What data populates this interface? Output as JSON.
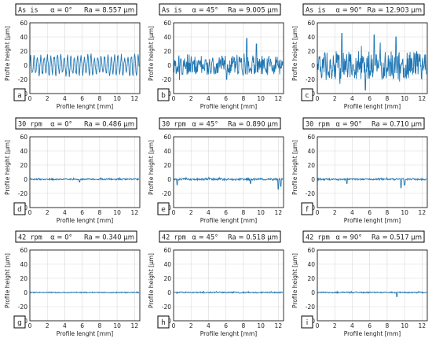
{
  "figure": {
    "series_color": "#1f77b4",
    "axis_color": "#000000",
    "grid_color": "#d9d9d9"
  },
  "chart_data": [
    {
      "type": "line",
      "panel_label": "a",
      "header": {
        "condition": "As is",
        "angle": "α = 0°",
        "ra": "Ra = 8.557 μm"
      },
      "xlabel": "Profile lenght [mm]",
      "ylabel": "Profile height [μm]",
      "xlim": [
        0,
        12.6
      ],
      "ylim": [
        -40,
        60
      ],
      "xticks": [
        0,
        2,
        4,
        6,
        8,
        10,
        12
      ],
      "yticks": [
        -40,
        -20,
        0,
        20,
        40,
        60
      ],
      "grid": true,
      "series": [
        {
          "amplitude": 15,
          "peak": 22,
          "spikes": [],
          "description": "periodic oscillation around 0"
        }
      ]
    },
    {
      "type": "line",
      "panel_label": "b",
      "header": {
        "condition": "As is",
        "angle": "α = 45°",
        "ra": "Ra = 9.005 μm"
      },
      "xlabel": "Profile lenght [mm]",
      "ylabel": "Profile height [μm]",
      "xlim": [
        0,
        12.6
      ],
      "ylim": [
        -40,
        60
      ],
      "xticks": [
        0,
        2,
        4,
        6,
        8,
        10,
        12
      ],
      "yticks": [
        -40,
        -20,
        0,
        20,
        40,
        60
      ],
      "grid": true,
      "series": [
        {
          "amplitude": 14,
          "peak": 38,
          "spikes": [
            [
              8.4,
              38
            ],
            [
              9.5,
              30
            ],
            [
              6.1,
              -20
            ]
          ],
          "description": "irregular profile around 0"
        }
      ]
    },
    {
      "type": "line",
      "panel_label": "c",
      "header": {
        "condition": "As is",
        "angle": "α = 90°",
        "ra": "Ra = 12.903 μm"
      },
      "xlabel": "Profile lenght [mm]",
      "ylabel": "Profile height [μm]",
      "xlim": [
        0,
        12.6
      ],
      "ylim": [
        -40,
        60
      ],
      "xticks": [
        0,
        2,
        4,
        6,
        8,
        10,
        12
      ],
      "yticks": [
        -40,
        -20,
        0,
        20,
        40,
        60
      ],
      "grid": true,
      "series": [
        {
          "amplitude": 20,
          "peak": 45,
          "spikes": [
            [
              2.8,
              45
            ],
            [
              6.5,
              43
            ],
            [
              9.0,
              40
            ],
            [
              5.5,
              -35
            ]
          ],
          "description": "high-amplitude irregular profile"
        }
      ]
    },
    {
      "type": "line",
      "panel_label": "d",
      "header": {
        "condition": "30 rpm",
        "angle": "α = 0°",
        "ra": "Ra = 0.486 μm"
      },
      "xlabel": "Profile lenght [mm]",
      "ylabel": "Profile height [μm]",
      "xlim": [
        0,
        12.6
      ],
      "ylim": [
        -40,
        60
      ],
      "xticks": [
        0,
        2,
        4,
        6,
        8,
        10,
        12
      ],
      "yticks": [
        -40,
        -20,
        0,
        20,
        40,
        60
      ],
      "grid": true,
      "series": [
        {
          "amplitude": 1.0,
          "peak": 2,
          "spikes": [
            [
              5.7,
              -4
            ]
          ],
          "description": "nearly flat at 0"
        }
      ]
    },
    {
      "type": "line",
      "panel_label": "e",
      "header": {
        "condition": "30 rpm",
        "angle": "α = 45°",
        "ra": "Ra = 0.890 μm"
      },
      "xlabel": "Profile lenght [mm]",
      "ylabel": "Profile height [μm]",
      "xlim": [
        0,
        12.6
      ],
      "ylim": [
        -40,
        60
      ],
      "xticks": [
        0,
        2,
        4,
        6,
        8,
        10,
        12
      ],
      "yticks": [
        -40,
        -20,
        0,
        20,
        40,
        60
      ],
      "grid": true,
      "series": [
        {
          "amplitude": 1.5,
          "peak": 3,
          "spikes": [
            [
              0.4,
              -8
            ],
            [
              8.8,
              -6
            ],
            [
              12.0,
              -14
            ],
            [
              12.3,
              -10
            ]
          ],
          "description": "nearly flat with small dips"
        }
      ]
    },
    {
      "type": "line",
      "panel_label": "f",
      "header": {
        "condition": "30 rpm",
        "angle": "α = 90°",
        "ra": "Ra = 0.710 μm"
      },
      "xlabel": "Profile lenght [mm]",
      "ylabel": "Profile height [μm]",
      "xlim": [
        0,
        12.6
      ],
      "ylim": [
        -40,
        60
      ],
      "xticks": [
        0,
        2,
        4,
        6,
        8,
        10,
        12
      ],
      "yticks": [
        -40,
        -20,
        0,
        20,
        40,
        60
      ],
      "grid": true,
      "series": [
        {
          "amplitude": 1.2,
          "peak": 3,
          "spikes": [
            [
              3.4,
              -6
            ],
            [
              9.6,
              -12
            ],
            [
              10.0,
              -8
            ]
          ],
          "description": "nearly flat with small dips"
        }
      ]
    },
    {
      "type": "line",
      "panel_label": "g",
      "header": {
        "condition": "42 rpm",
        "angle": "α = 0°",
        "ra": "Ra = 0.340 μm"
      },
      "xlabel": "Profile lenght [mm]",
      "ylabel": "Profile height [μm]",
      "xlim": [
        0,
        12.6
      ],
      "ylim": [
        -40,
        60
      ],
      "xticks": [
        0,
        2,
        4,
        6,
        8,
        10,
        12
      ],
      "yticks": [
        -40,
        -20,
        0,
        20,
        40,
        60
      ],
      "grid": true,
      "series": [
        {
          "amplitude": 0.7,
          "peak": 1,
          "spikes": [],
          "description": "flat at 0"
        }
      ]
    },
    {
      "type": "line",
      "panel_label": "h",
      "header": {
        "condition": "42 rpm",
        "angle": "α = 45°",
        "ra": "Ra = 0.518 μm"
      },
      "xlabel": "Profile lenght [mm]",
      "ylabel": "Profile height [μm]",
      "xlim": [
        0,
        12.6
      ],
      "ylim": [
        -40,
        60
      ],
      "xticks": [
        0,
        2,
        4,
        6,
        8,
        10,
        12
      ],
      "yticks": [
        -40,
        -20,
        0,
        20,
        40,
        60
      ],
      "grid": true,
      "series": [
        {
          "amplitude": 0.9,
          "peak": 2,
          "spikes": [],
          "description": "flat at 0"
        }
      ]
    },
    {
      "type": "line",
      "panel_label": "i",
      "header": {
        "condition": "42 rpm",
        "angle": "α = 90°",
        "ra": "Ra = 0.517 μm"
      },
      "xlabel": "Profile lenght [mm]",
      "ylabel": "Profile height [μm]",
      "xlim": [
        0,
        12.6
      ],
      "ylim": [
        -40,
        60
      ],
      "xticks": [
        0,
        2,
        4,
        6,
        8,
        10,
        12
      ],
      "yticks": [
        -40,
        -20,
        0,
        20,
        40,
        60
      ],
      "grid": true,
      "series": [
        {
          "amplitude": 0.9,
          "peak": 2,
          "spikes": [
            [
              9.1,
              -6
            ]
          ],
          "description": "flat at 0 with one dip"
        }
      ]
    }
  ]
}
